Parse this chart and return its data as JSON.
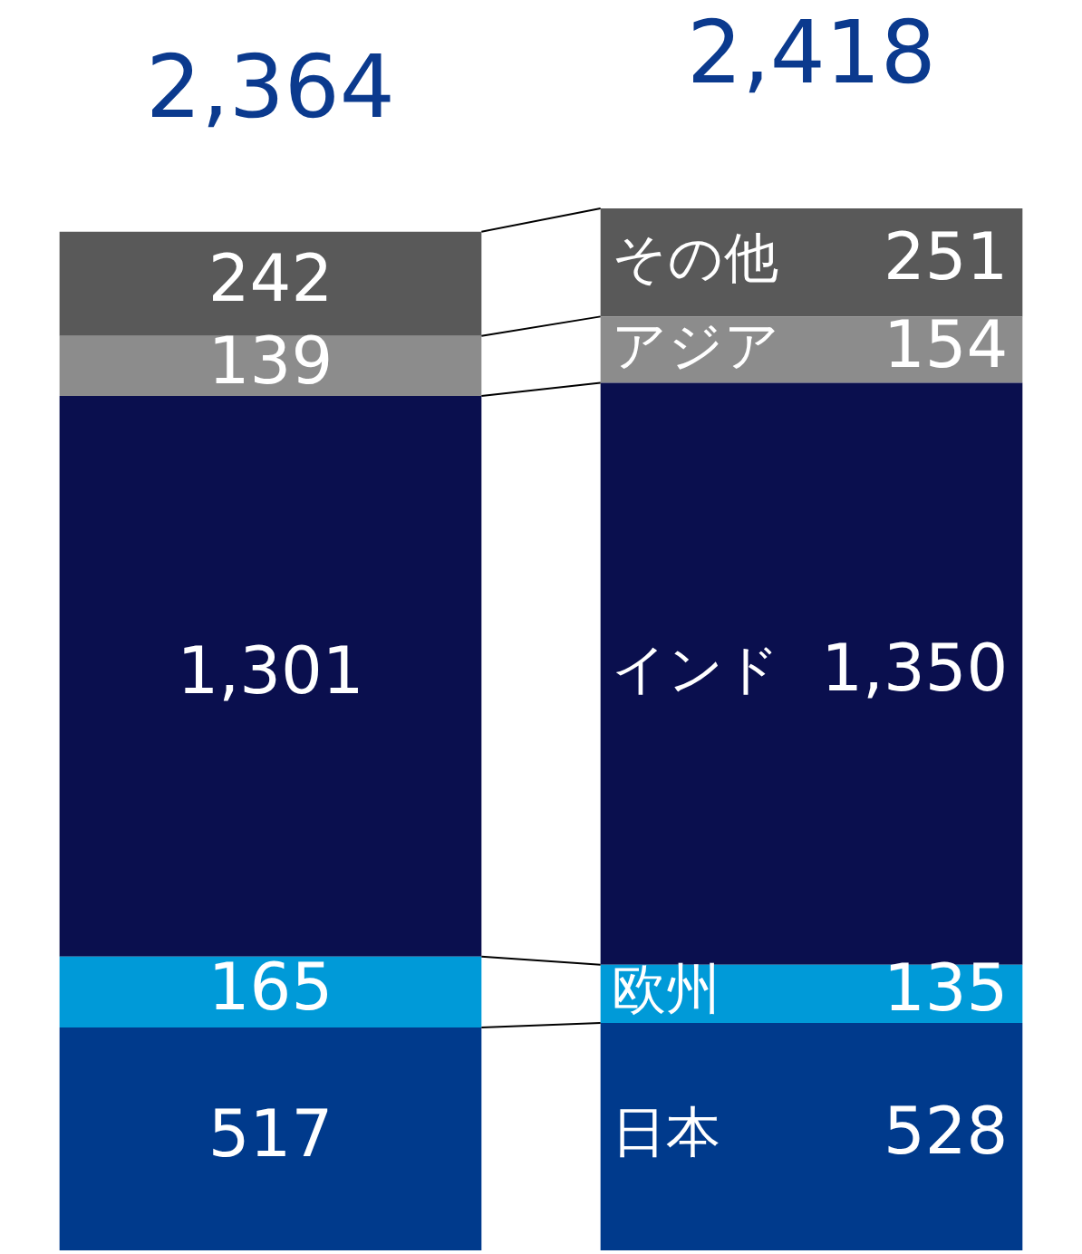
{
  "chart_data": {
    "type": "bar",
    "stacked": true,
    "categories": [
      null,
      null
    ],
    "legend": false,
    "totals": [
      "2,364",
      "2,418"
    ],
    "series": [
      {
        "name": "日本",
        "color": "#003a8c",
        "values": [
          517,
          528
        ],
        "value_labels": [
          "517",
          "528"
        ]
      },
      {
        "name": "欧州",
        "color": "#009ad8",
        "values": [
          165,
          135
        ],
        "value_labels": [
          "165",
          "135"
        ]
      },
      {
        "name": "インド",
        "color": "#0a0f4e",
        "values": [
          1301,
          1350
        ],
        "value_labels": [
          "1,301",
          "1,350"
        ]
      },
      {
        "name": "アジア",
        "color": "#8c8c8c",
        "values": [
          139,
          154
        ],
        "value_labels": [
          "139",
          "154"
        ]
      },
      {
        "name": "その他",
        "color": "#595959",
        "values": [
          242,
          251
        ],
        "value_labels": [
          "242",
          "251"
        ]
      }
    ]
  }
}
